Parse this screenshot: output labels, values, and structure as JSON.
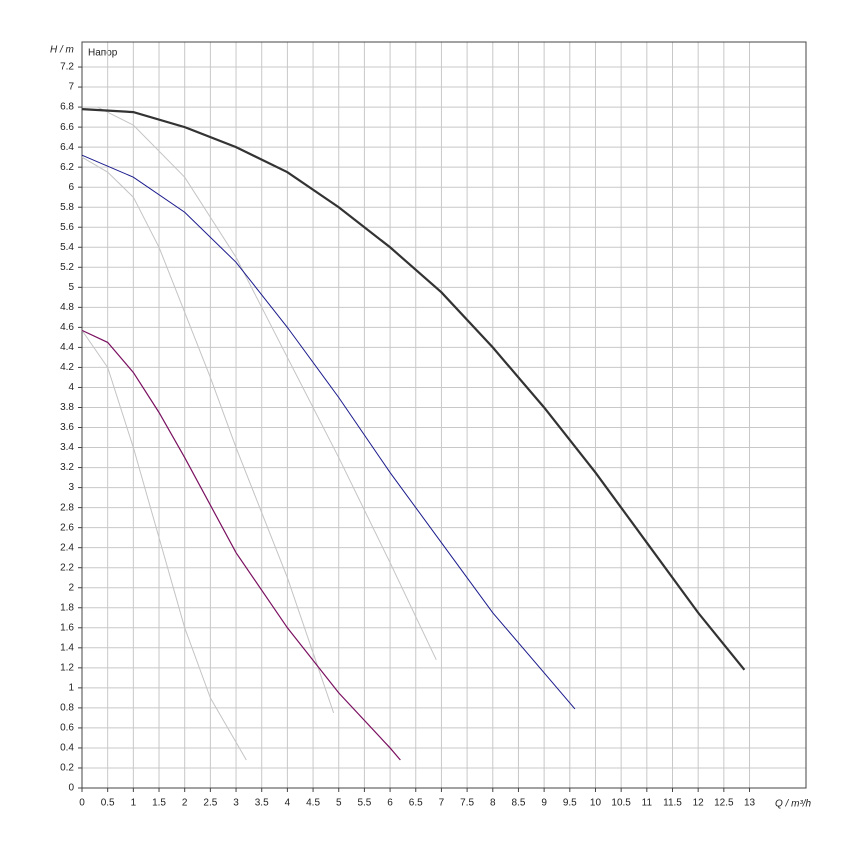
{
  "chart_data": {
    "type": "line",
    "y_label": "H / m",
    "x_label": "Q / m³/h",
    "annotation": "Напор",
    "xlim": [
      0,
      14.1
    ],
    "ylim": [
      0,
      7.45
    ],
    "xticks": [
      0,
      0.5,
      1,
      1.5,
      2,
      2.5,
      3,
      3.5,
      4,
      4.5,
      5,
      5.5,
      6,
      6.5,
      7,
      7.5,
      8,
      8.5,
      9,
      9.5,
      10,
      10.5,
      11,
      11.5,
      12,
      12.5,
      13
    ],
    "yticks": [
      0,
      0.2,
      0.4,
      0.6,
      0.8,
      1,
      1.2,
      1.4,
      1.6,
      1.8,
      2,
      2.2,
      2.4,
      2.6,
      2.8,
      3,
      3.2,
      3.4,
      3.6,
      3.8,
      4,
      4.2,
      4.4,
      4.6,
      4.8,
      5,
      5.2,
      5.4,
      5.6,
      5.8,
      6,
      6.2,
      6.4,
      6.6,
      6.8,
      7,
      7.2
    ],
    "grid": true,
    "series": [
      {
        "color": "#c4c4c4",
        "width": 1,
        "x": [
          0.3,
          1,
          2,
          3,
          4,
          5,
          6,
          6.9
        ],
        "values": [
          6.8,
          6.62,
          6.1,
          5.3,
          4.3,
          3.3,
          2.25,
          1.28
        ]
      },
      {
        "color": "#c4c4c4",
        "width": 1,
        "x": [
          0,
          0.5,
          1,
          1.5,
          2,
          2.5,
          3,
          3.5,
          4,
          4.5,
          4.9
        ],
        "values": [
          6.3,
          6.15,
          5.9,
          5.4,
          4.75,
          4.1,
          3.4,
          2.75,
          2.1,
          1.35,
          0.75
        ]
      },
      {
        "color": "#c4c4c4",
        "width": 1,
        "x": [
          0,
          0.5,
          1,
          1.5,
          2,
          2.5,
          3.2
        ],
        "values": [
          4.57,
          4.2,
          3.4,
          2.5,
          1.6,
          0.9,
          0.28
        ]
      },
      {
        "color": "#333333",
        "width": 2.2,
        "x": [
          0,
          1,
          2,
          3,
          4,
          5,
          6,
          7,
          8,
          9,
          10,
          11,
          12,
          12.9
        ],
        "values": [
          6.78,
          6.75,
          6.6,
          6.4,
          6.15,
          5.8,
          5.4,
          4.95,
          4.4,
          3.8,
          3.15,
          2.45,
          1.75,
          1.18
        ]
      },
      {
        "color": "#1a1a8c",
        "width": 1,
        "x": [
          0,
          1,
          2,
          3,
          4,
          5,
          6,
          7,
          8,
          9,
          9.6
        ],
        "values": [
          6.32,
          6.1,
          5.75,
          5.25,
          4.6,
          3.9,
          3.15,
          2.45,
          1.75,
          1.15,
          0.79
        ]
      },
      {
        "color": "#7a1060",
        "width": 1.2,
        "x": [
          0,
          0.5,
          1,
          1.5,
          2,
          3,
          4,
          5,
          6,
          6.2
        ],
        "values": [
          4.57,
          4.45,
          4.15,
          3.75,
          3.3,
          2.35,
          1.6,
          0.95,
          0.4,
          0.28
        ]
      }
    ]
  }
}
